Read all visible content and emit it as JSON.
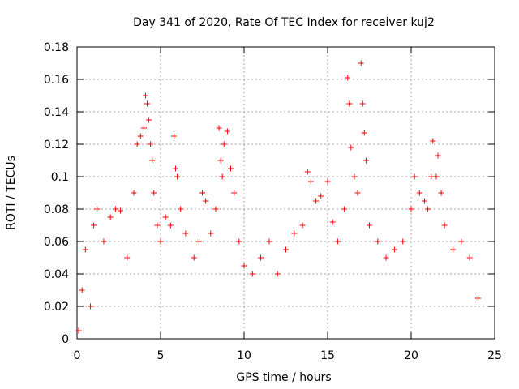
{
  "chart_data": {
    "type": "scatter",
    "title": "Day 341 of 2020, Rate Of TEC Index for receiver kuj2",
    "xlabel": "GPS time / hours",
    "ylabel": "ROTI / TECUs",
    "xlim": [
      0,
      25
    ],
    "ylim": [
      0,
      0.18
    ],
    "x_ticks": [
      0,
      5,
      10,
      15,
      20,
      25
    ],
    "x_tick_labels": [
      "0",
      "5",
      "10",
      "15",
      "20",
      "25"
    ],
    "y_ticks": [
      0,
      0.02,
      0.04,
      0.06,
      0.08,
      0.1,
      0.12,
      0.14,
      0.16,
      0.18
    ],
    "y_tick_labels": [
      "0",
      "0.02",
      "0.04",
      "0.06",
      "0.08",
      "0.1",
      "0.12",
      "0.14",
      "0.16",
      "0.18"
    ],
    "grid": true,
    "marker": "+",
    "marker_color": "#ff0000",
    "series": [
      {
        "name": "ROTI",
        "points": [
          [
            0.1,
            0.005
          ],
          [
            0.3,
            0.03
          ],
          [
            0.5,
            0.055
          ],
          [
            0.8,
            0.02
          ],
          [
            1.0,
            0.07
          ],
          [
            1.2,
            0.08
          ],
          [
            1.6,
            0.06
          ],
          [
            2.0,
            0.075
          ],
          [
            2.3,
            0.08
          ],
          [
            2.6,
            0.079
          ],
          [
            3.0,
            0.05
          ],
          [
            3.4,
            0.09
          ],
          [
            3.6,
            0.12
          ],
          [
            3.8,
            0.125
          ],
          [
            4.0,
            0.13
          ],
          [
            4.1,
            0.15
          ],
          [
            4.2,
            0.145
          ],
          [
            4.3,
            0.135
          ],
          [
            4.4,
            0.12
          ],
          [
            4.5,
            0.11
          ],
          [
            4.6,
            0.09
          ],
          [
            4.8,
            0.07
          ],
          [
            5.0,
            0.06
          ],
          [
            5.3,
            0.075
          ],
          [
            5.6,
            0.07
          ],
          [
            5.8,
            0.125
          ],
          [
            5.9,
            0.105
          ],
          [
            6.0,
            0.1
          ],
          [
            6.2,
            0.08
          ],
          [
            6.5,
            0.065
          ],
          [
            7.0,
            0.05
          ],
          [
            7.3,
            0.06
          ],
          [
            7.5,
            0.09
          ],
          [
            7.7,
            0.085
          ],
          [
            8.0,
            0.065
          ],
          [
            8.3,
            0.08
          ],
          [
            8.5,
            0.13
          ],
          [
            8.6,
            0.11
          ],
          [
            8.7,
            0.1
          ],
          [
            8.8,
            0.12
          ],
          [
            9.0,
            0.128
          ],
          [
            9.2,
            0.105
          ],
          [
            9.4,
            0.09
          ],
          [
            9.7,
            0.06
          ],
          [
            10.0,
            0.045
          ],
          [
            10.5,
            0.04
          ],
          [
            11.0,
            0.05
          ],
          [
            11.5,
            0.06
          ],
          [
            12.0,
            0.04
          ],
          [
            12.5,
            0.055
          ],
          [
            13.0,
            0.065
          ],
          [
            13.5,
            0.07
          ],
          [
            13.8,
            0.103
          ],
          [
            14.0,
            0.097
          ],
          [
            14.3,
            0.085
          ],
          [
            14.6,
            0.088
          ],
          [
            15.0,
            0.097
          ],
          [
            15.3,
            0.072
          ],
          [
            15.6,
            0.06
          ],
          [
            16.0,
            0.08
          ],
          [
            16.2,
            0.161
          ],
          [
            16.3,
            0.145
          ],
          [
            16.4,
            0.118
          ],
          [
            16.6,
            0.1
          ],
          [
            16.8,
            0.09
          ],
          [
            17.0,
            0.17
          ],
          [
            17.1,
            0.145
          ],
          [
            17.2,
            0.127
          ],
          [
            17.3,
            0.11
          ],
          [
            17.5,
            0.07
          ],
          [
            18.0,
            0.06
          ],
          [
            18.5,
            0.05
          ],
          [
            19.0,
            0.055
          ],
          [
            19.5,
            0.06
          ],
          [
            20.0,
            0.08
          ],
          [
            20.2,
            0.1
          ],
          [
            20.5,
            0.09
          ],
          [
            20.8,
            0.085
          ],
          [
            21.0,
            0.08
          ],
          [
            21.2,
            0.1
          ],
          [
            21.3,
            0.122
          ],
          [
            21.5,
            0.1
          ],
          [
            21.6,
            0.113
          ],
          [
            21.8,
            0.09
          ],
          [
            22.0,
            0.07
          ],
          [
            22.5,
            0.055
          ],
          [
            23.0,
            0.06
          ],
          [
            23.5,
            0.05
          ],
          [
            24.0,
            0.025
          ]
        ]
      }
    ]
  }
}
